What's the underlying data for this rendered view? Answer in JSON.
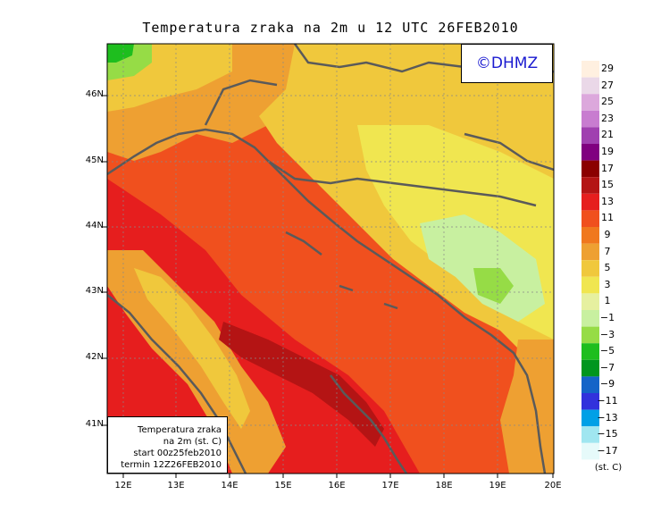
{
  "title": "Temperatura zraka na 2m u 12 UTC 26FEB2010",
  "logo": "©DHMZ",
  "info_box": {
    "line1": "Temperatura zraka",
    "line2": "na 2m (st. C)",
    "line3": "start 00z25feb2010",
    "line4": "termin 12Z26FEB2010"
  },
  "lat_labels": [
    "46N",
    "45N",
    "44N",
    "43N",
    "42N",
    "41N"
  ],
  "lon_labels": [
    "12E",
    "13E",
    "14E",
    "15E",
    "16E",
    "17E",
    "18E",
    "19E",
    "20E"
  ],
  "legend": {
    "unit": "(st. C)",
    "labels": [
      "29",
      "27",
      "25",
      "23",
      "21",
      "19",
      "17",
      "15",
      "13",
      "11",
      "9",
      "7",
      "5",
      "3",
      "1",
      "−1",
      "−3",
      "−5",
      "−7",
      "−9",
      "−11",
      "−13",
      "−15",
      "−17"
    ],
    "colors": [
      "#fff0e0",
      "#ead8e8",
      "#dca8dc",
      "#c87cd0",
      "#a040b0",
      "#800080",
      "#8b0000",
      "#b41414",
      "#e61e1e",
      "#f0501e",
      "#f0781e",
      "#eea032",
      "#f0c83c",
      "#f0e650",
      "#e6f0a0",
      "#c8f0a0",
      "#96dc46",
      "#1ebe1e",
      "#00961e",
      "#1464c8",
      "#3232dc",
      "#00a0e6",
      "#a0e6f0",
      "#e6fafa"
    ]
  },
  "colors": {
    "sea_hot": "#e61e1e",
    "sea_warm": "#f0501e",
    "coast_orange": "#eea032",
    "land_yellow": "#f0c83c",
    "land_pale": "#f0e650",
    "land_green": "#c8f0a0",
    "coastline": "#5a5a5a"
  }
}
